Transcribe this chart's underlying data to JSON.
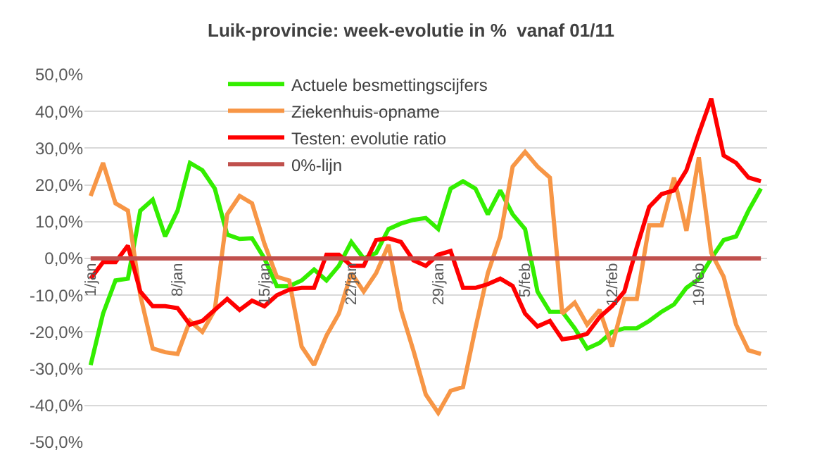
{
  "chart_data": {
    "type": "line",
    "title": "Luik-provincie: week-evolutie in %  vanaf 01/11",
    "categories": [
      "1/jan",
      null,
      null,
      null,
      null,
      null,
      null,
      "8/jan",
      null,
      null,
      null,
      null,
      null,
      null,
      "15/jan",
      null,
      null,
      null,
      null,
      null,
      null,
      "22/jan",
      null,
      null,
      null,
      null,
      null,
      null,
      "29/jan",
      null,
      null,
      null,
      null,
      null,
      null,
      "5/feb",
      null,
      null,
      null,
      null,
      null,
      null,
      "12/feb",
      null,
      null,
      null,
      null,
      null,
      null,
      "19/feb",
      null,
      null,
      null,
      null,
      null
    ],
    "series": [
      {
        "name": "Actuele besmettingscijfers",
        "color": "#33ee00",
        "values": [
          -29,
          -15,
          -6,
          -5.5,
          13,
          16,
          6,
          13,
          26,
          24,
          19,
          6.5,
          5.3,
          5.5,
          0,
          -7.5,
          -7.5,
          -6,
          -3,
          -6,
          -2,
          4.5,
          0,
          1.5,
          8,
          9.5,
          10.5,
          11,
          8,
          19,
          21,
          19,
          12,
          18.5,
          12,
          8,
          -9,
          -14.5,
          -14.5,
          -19,
          -24.5,
          -23,
          -20,
          -19,
          -19,
          -17,
          -14.5,
          -12.5,
          -8,
          -5.6,
          0,
          5,
          6,
          13,
          19
        ]
      },
      {
        "name": "Ziekenhuis-opname",
        "color": "#f79646",
        "values": [
          17,
          26,
          15,
          13,
          -10,
          -24.5,
          -25.5,
          -26,
          -17,
          -20,
          -14,
          12,
          17,
          15,
          4,
          -5,
          -6,
          -24,
          -29,
          -21,
          -15,
          -4,
          -9,
          -4,
          3.7,
          -14,
          -25,
          -37,
          -42,
          -36,
          -35,
          -19,
          -4,
          6,
          25,
          29,
          25,
          22,
          -15,
          -12,
          -18,
          -14,
          -24,
          -11,
          -11,
          9,
          9,
          22,
          7.5,
          27.5,
          1.5,
          -5,
          -18,
          -25,
          -26
        ]
      },
      {
        "name": "Testen: evolutie ratio",
        "color": "#ff0000",
        "values": [
          -5.5,
          -1,
          -1,
          3.5,
          -9,
          -13,
          -13,
          -13.5,
          -18,
          -17,
          -14,
          -11,
          -14,
          -11.5,
          -13,
          -10,
          -8.5,
          -8,
          -8,
          1,
          1,
          -2,
          -2,
          5,
          5.5,
          4.5,
          -0.5,
          -2,
          1,
          2,
          -8,
          -8,
          -7,
          -5.5,
          -7.5,
          -15,
          -18.5,
          -17,
          -22,
          -21.5,
          -20.5,
          -16,
          -13,
          -9,
          3,
          14,
          17.5,
          18.5,
          24,
          34,
          43.5,
          28,
          26,
          22,
          21
        ]
      },
      {
        "name": "0%-lijn",
        "color": "#c0504d",
        "values": [
          0,
          0,
          0,
          0,
          0,
          0,
          0,
          0,
          0,
          0,
          0,
          0,
          0,
          0,
          0,
          0,
          0,
          0,
          0,
          0,
          0,
          0,
          0,
          0,
          0,
          0,
          0,
          0,
          0,
          0,
          0,
          0,
          0,
          0,
          0,
          0,
          0,
          0,
          0,
          0,
          0,
          0,
          0,
          0,
          0,
          0,
          0,
          0,
          0,
          0,
          0,
          0,
          0,
          0,
          0
        ]
      }
    ],
    "ylim": [
      -50,
      50
    ],
    "yticks": [
      {
        "value": -50,
        "label": "-50,0%"
      },
      {
        "value": -40,
        "label": "-40,0%"
      },
      {
        "value": -30,
        "label": "-30,0%"
      },
      {
        "value": -20,
        "label": "-20,0%"
      },
      {
        "value": -10,
        "label": "-10,0%"
      },
      {
        "value": 0,
        "label": "0,0%"
      },
      {
        "value": 10,
        "label": "10,0%"
      },
      {
        "value": 20,
        "label": "20,0%"
      },
      {
        "value": 30,
        "label": "30,0%"
      },
      {
        "value": 40,
        "label": "40,0%"
      },
      {
        "value": 50,
        "label": "50,0%"
      }
    ],
    "grid": "y",
    "legend": "top",
    "marker": "none",
    "line_style": "solid"
  }
}
